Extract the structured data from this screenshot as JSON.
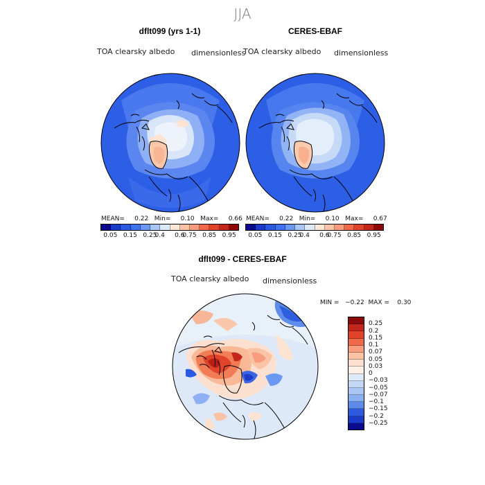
{
  "season": "JJA",
  "panels": {
    "model": {
      "title": "dflt099 (yrs 1-1)",
      "variable": "TOA clearsky albedo",
      "units": "dimensionless",
      "stats": "MEAN=     0.22   Min=     0.10   Max=     0.66"
    },
    "obs": {
      "title": "CERES-EBAF",
      "variable": "TOA clearsky albedo",
      "units": "dimensionless",
      "stats": "MEAN=     0.22   Min=     0.10   Max=     0.67"
    },
    "diff": {
      "title": "dflt099 - CERES-EBAF",
      "variable": "TOA clearsky albedo",
      "units": "dimensionless",
      "minmax": "MIN =   −0.22  MAX =    0.30"
    }
  },
  "abs_colorbar": {
    "labels": [
      "0.05",
      "0.15",
      "0.25",
      "0.4",
      "0.6",
      "0.75",
      "0.85",
      "0.95"
    ],
    "colors": [
      "#0a0a8c",
      "#1a3cc8",
      "#2a5ae0",
      "#3f73ee",
      "#6a98f2",
      "#a9c6f5",
      "#dce9f8",
      "#fde6d6",
      "#fbc3a6",
      "#f79c7c",
      "#f06a4a",
      "#e0432a",
      "#c3261a",
      "#8c0a0a"
    ]
  },
  "diff_colorbar": {
    "labels": [
      "0.25",
      "0.2",
      "0.15",
      "0.1",
      "0.07",
      "0.05",
      "0.03",
      "0",
      "−0.03",
      "−0.05",
      "−0.07",
      "−0.1",
      "−0.15",
      "−0.2",
      "−0.25"
    ],
    "colors": [
      "#8c0a0a",
      "#c3261a",
      "#e0432a",
      "#f06a4a",
      "#f79c7c",
      "#fbc3a6",
      "#fde0d0",
      "#fdf0e6",
      "#dce9f8",
      "#c2d8f6",
      "#a9c6f5",
      "#8ab0f1",
      "#5d8bea",
      "#2e5ae0",
      "#1a3cc8",
      "#0a0a8c"
    ]
  }
}
